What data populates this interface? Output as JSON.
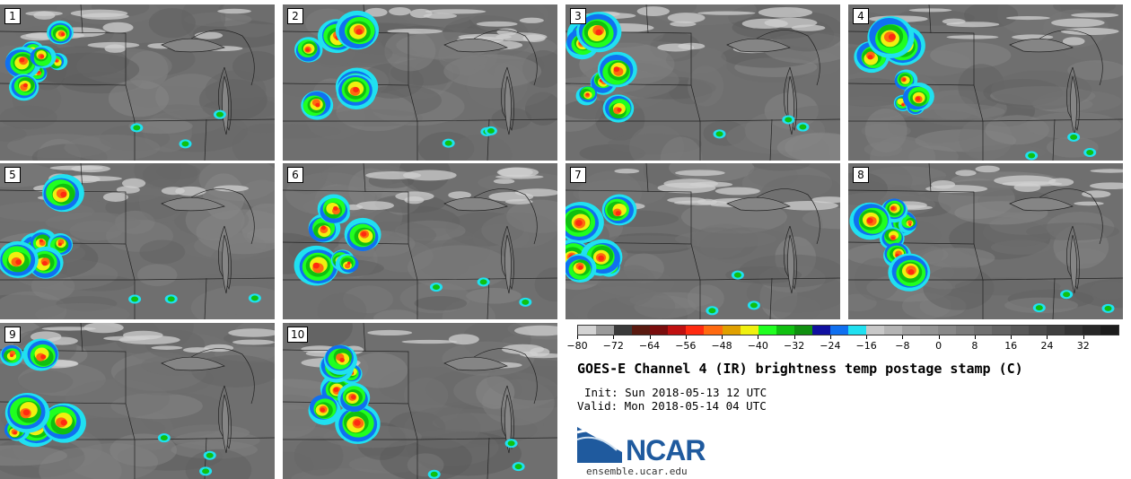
{
  "panels": [
    {
      "label": "1"
    },
    {
      "label": "2"
    },
    {
      "label": "3"
    },
    {
      "label": "4"
    },
    {
      "label": "5"
    },
    {
      "label": "6"
    },
    {
      "label": "7"
    },
    {
      "label": "8"
    },
    {
      "label": "9"
    },
    {
      "label": "10"
    }
  ],
  "colorbar": {
    "tick_labels": [
      "−80",
      "−72",
      "−64",
      "−56",
      "−48",
      "−40",
      "−32",
      "−24",
      "−16",
      "−8",
      "0",
      "8",
      "16",
      "24",
      "32"
    ],
    "range": [
      -80,
      40
    ],
    "colors": [
      "#d3d3d3",
      "#9a9a9a",
      "#3a3a3a",
      "#5a1a10",
      "#7a0d0d",
      "#c01010",
      "#ff2a10",
      "#ff6a10",
      "#e0a000",
      "#f0f010",
      "#20ff20",
      "#10c010",
      "#109010",
      "#1010a0",
      "#1070f0",
      "#20e0f0",
      "#c8c8c8",
      "#b4b4b4",
      "#a0a0a0",
      "#949494",
      "#888888",
      "#7c7c7c",
      "#707070",
      "#646464",
      "#585858",
      "#4c4c4c",
      "#404040",
      "#343434",
      "#282828",
      "#1c1c1c"
    ]
  },
  "title": "GOES-E Channel 4 (IR) brightness temp postage stamp (C)",
  "init": "Init: Sun 2018-05-13 12 UTC",
  "valid": "Valid: Mon 2018-05-14 04 UTC",
  "logo": {
    "text": "NCAR",
    "color": "#1f5a9e"
  },
  "url": "ensemble.ucar.edu"
}
